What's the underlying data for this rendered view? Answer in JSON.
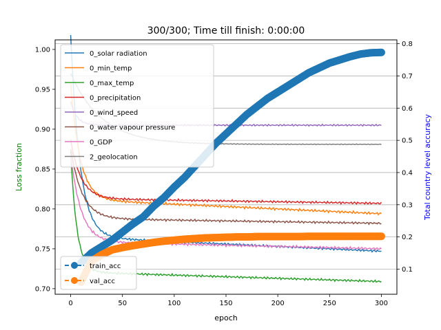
{
  "chart_data": {
    "type": "line",
    "title": "300/300; Time till finish: 0:00:00",
    "xlabel": "epoch",
    "ylabel_left": "Loss fraction",
    "ylabel_right": "Total country level accuracy",
    "ylabel_left_color": "#008000",
    "ylabel_right_color": "#0000ff",
    "xlim": [
      -15,
      315
    ],
    "ylim_left": [
      0.693,
      1.012
    ],
    "ylim_right": [
      0.022,
      0.812
    ],
    "x_ticks": [
      0,
      50,
      100,
      150,
      200,
      250,
      300
    ],
    "y_ticks_left": [
      0.7,
      0.75,
      0.8,
      0.85,
      0.9,
      0.95,
      1.0
    ],
    "y_ticks_left_labels": [
      "0.70",
      "0.75",
      "0.80",
      "0.85",
      "0.90",
      "0.95",
      "1.00"
    ],
    "y_ticks_right": [
      0.1,
      0.2,
      0.3,
      0.4,
      0.5,
      0.6,
      0.7,
      0.8
    ],
    "y_ticks_right_labels": [
      "0.1",
      "0.2",
      "0.3",
      "0.4",
      "0.5",
      "0.6",
      "0.7",
      "0.8"
    ],
    "grid": "horizontal lines at right-axis ticks",
    "legend_left_placement": "upper-left",
    "legend_right_placement": "lower-left",
    "loss_series": [
      {
        "name": "0_solar radiation",
        "color": "#1f77b4",
        "start": 1.0,
        "end": 0.747,
        "tau": 9,
        "slope": 6e-05,
        "noise": 0.0008
      },
      {
        "name": "0_min_temp",
        "color": "#ff7f0e",
        "start": 0.94,
        "end": 0.794,
        "tau": 9,
        "slope": 6e-05,
        "noise": 0.0009
      },
      {
        "name": "0_max_temp",
        "color": "#2ca02c",
        "start": 0.86,
        "end": 0.709,
        "tau": 6,
        "slope": 4e-05,
        "noise": 0.0008
      },
      {
        "name": "0_precipitation",
        "color": "#d62728",
        "start": 0.88,
        "end": 0.807,
        "tau": 10,
        "slope": 2e-05,
        "noise": 0.0008
      },
      {
        "name": "0_wind_speed",
        "color": "#9467bd",
        "start": 0.935,
        "end": 0.905,
        "tau": 6,
        "slope": 0.0,
        "noise": 0.0006
      },
      {
        "name": "0_water vapour pressure",
        "color": "#8c564b",
        "start": 0.87,
        "end": 0.782,
        "tau": 11,
        "slope": 2e-05,
        "noise": 0.0008
      },
      {
        "name": "0_GDP",
        "color": "#e377c2",
        "start": 0.86,
        "end": 0.75,
        "tau": 10,
        "slope": 3e-05,
        "noise": 0.0009
      },
      {
        "name": "2_geolocation",
        "color": "#7f7f7f",
        "start": 0.97,
        "end": 0.881,
        "tau": 30,
        "slope": 0.0,
        "noise": 0.0003
      }
    ],
    "acc_series": [
      {
        "name": "train_acc",
        "color": "#1f77b4",
        "linestyle": "dashed",
        "marker": "circle",
        "x": [
          10,
          20,
          30,
          40,
          50,
          60,
          70,
          80,
          90,
          100,
          110,
          120,
          130,
          140,
          150,
          160,
          170,
          180,
          190,
          200,
          210,
          220,
          230,
          240,
          250,
          260,
          270,
          280,
          290,
          300
        ],
        "y": [
          0.12,
          0.15,
          0.17,
          0.19,
          0.215,
          0.24,
          0.262,
          0.295,
          0.322,
          0.355,
          0.385,
          0.42,
          0.455,
          0.49,
          0.52,
          0.55,
          0.58,
          0.605,
          0.63,
          0.65,
          0.67,
          0.69,
          0.71,
          0.725,
          0.74,
          0.75,
          0.76,
          0.768,
          0.772,
          0.773
        ]
      },
      {
        "name": "val_acc",
        "color": "#ff7f0e",
        "linestyle": "dashed",
        "marker": "circle",
        "x": [
          10,
          20,
          30,
          40,
          50,
          60,
          70,
          80,
          90,
          100,
          110,
          120,
          130,
          140,
          150,
          160,
          170,
          180,
          190,
          200,
          210,
          220,
          230,
          240,
          250,
          260,
          270,
          280,
          290,
          300
        ],
        "y": [
          0.06,
          0.125,
          0.145,
          0.16,
          0.167,
          0.173,
          0.178,
          0.183,
          0.187,
          0.19,
          0.193,
          0.195,
          0.197,
          0.198,
          0.199,
          0.2,
          0.2,
          0.201,
          0.201,
          0.201,
          0.201,
          0.201,
          0.202,
          0.202,
          0.202,
          0.202,
          0.202,
          0.202,
          0.202,
          0.202
        ]
      }
    ]
  }
}
